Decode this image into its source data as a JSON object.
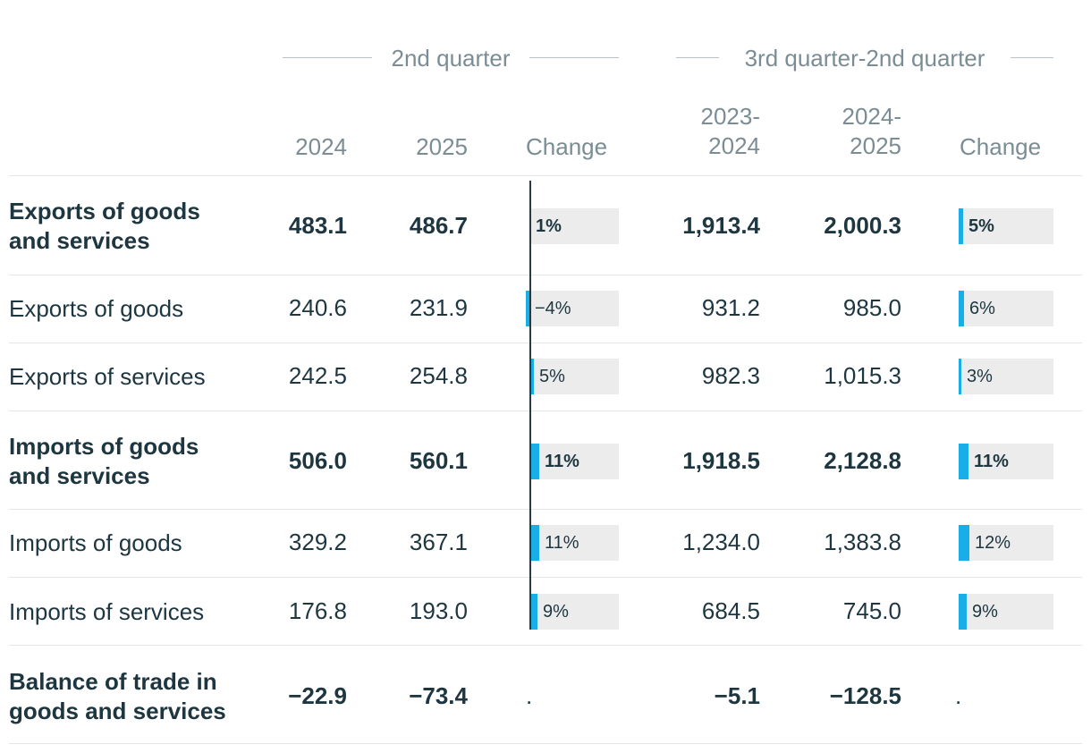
{
  "groups": {
    "q2": "2nd quarter",
    "ytd": "3rd quarter-2nd quarter"
  },
  "columns": {
    "c2024": "2024",
    "c2025": "2025",
    "change1": "Change",
    "r1_line1": "2023-",
    "r1_line2": "2024",
    "r2_line1": "2024-",
    "r2_line2": "2025",
    "change2": "Change"
  },
  "chart_data": {
    "type": "table",
    "columns": [
      "2024",
      "2025",
      "Change",
      "2023-2024",
      "2024-2025",
      "Change"
    ],
    "rows": [
      {
        "label": "Exports of goods and services",
        "bold": true,
        "v2024": "483.1",
        "v2025": "486.7",
        "change1": 1,
        "change1_label": "1%",
        "r1": "1,913.4",
        "r2": "2,000.3",
        "change2": 5,
        "change2_label": "5%"
      },
      {
        "label": "Exports of goods",
        "bold": false,
        "v2024": "240.6",
        "v2025": "231.9",
        "change1": -4,
        "change1_label": "−4%",
        "r1": "931.2",
        "r2": "985.0",
        "change2": 6,
        "change2_label": "6%"
      },
      {
        "label": "Exports of services",
        "bold": false,
        "v2024": "242.5",
        "v2025": "254.8",
        "change1": 5,
        "change1_label": "5%",
        "r1": "982.3",
        "r2": "1,015.3",
        "change2": 3,
        "change2_label": "3%"
      },
      {
        "label": "Imports of goods and services",
        "bold": true,
        "v2024": "506.0",
        "v2025": "560.1",
        "change1": 11,
        "change1_label": "11%",
        "r1": "1,918.5",
        "r2": "2,128.8",
        "change2": 11,
        "change2_label": "11%"
      },
      {
        "label": "Imports of goods",
        "bold": false,
        "v2024": "329.2",
        "v2025": "367.1",
        "change1": 11,
        "change1_label": "11%",
        "r1": "1,234.0",
        "r2": "1,383.8",
        "change2": 12,
        "change2_label": "12%"
      },
      {
        "label": "Imports of services",
        "bold": false,
        "v2024": "176.8",
        "v2025": "193.0",
        "change1": 9,
        "change1_label": "9%",
        "r1": "684.5",
        "r2": "745.0",
        "change2": 9,
        "change2_label": "9%"
      },
      {
        "label": "Balance of trade in goods and services",
        "bold": true,
        "v2024": "−22.9",
        "v2025": "−73.4",
        "change1": null,
        "change1_label": ".",
        "r1": "−5.1",
        "r2": "−128.5",
        "change2": null,
        "change2_label": "."
      }
    ],
    "bar_color": "#19aee7",
    "bar_bg_color": "#ececec"
  }
}
